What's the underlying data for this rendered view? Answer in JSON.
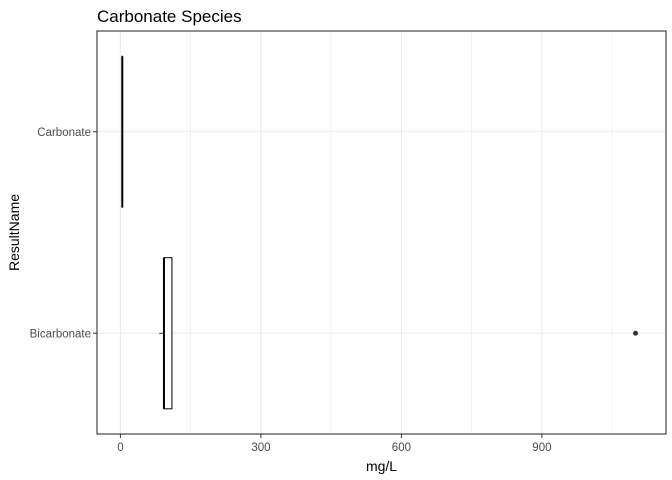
{
  "chart_data": {
    "type": "boxplot",
    "orientation": "horizontal",
    "title": "Carbonate Species",
    "xlabel": "mg/L",
    "ylabel": "ResultName",
    "xlim": [
      -50,
      1165
    ],
    "xticks": [
      0,
      300,
      600,
      900
    ],
    "x_minor_gridlines": [
      150,
      450,
      750,
      1050
    ],
    "grid": true,
    "categories": [
      "Carbonate",
      "Bicarbonate"
    ],
    "boxes": [
      {
        "category": "Carbonate",
        "whisker_low": 4,
        "q1": 4,
        "median": 4,
        "q3": 4,
        "whisker_high": 4,
        "outliers": []
      },
      {
        "category": "Bicarbonate",
        "whisker_low": 83,
        "q1": 93,
        "median": 93,
        "q3": 110,
        "whisker_high": 110,
        "outliers": [
          1100
        ]
      }
    ],
    "colors": {
      "box_stroke": "#000000",
      "box_fill": "#ffffff",
      "grid": "#ebebeb",
      "panel_border": "#333333",
      "tick_text": "#4d4d4d"
    }
  }
}
